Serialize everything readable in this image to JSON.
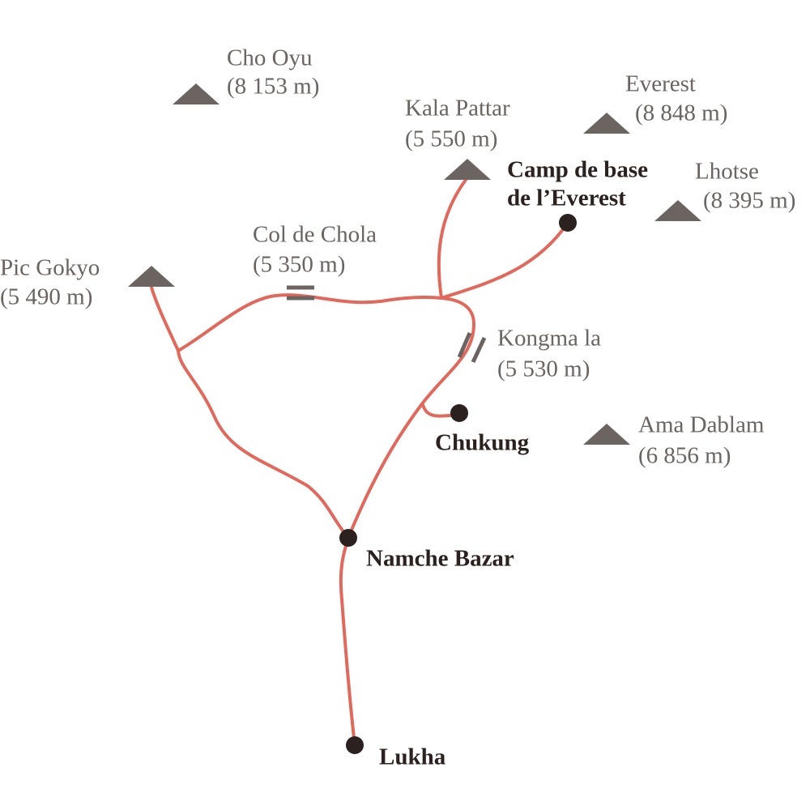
{
  "peaks": [
    {
      "name": "Cho Oyu",
      "altitude": "(8 153 m)"
    },
    {
      "name": "Kala Pattar",
      "altitude": "(5 550 m)"
    },
    {
      "name": "Everest",
      "altitude": "(8 848 m)"
    },
    {
      "name": "Lhotse",
      "altitude": "(8 395 m)"
    },
    {
      "name": "Pic Gokyo",
      "altitude": "(5 490 m)"
    },
    {
      "name": "Ama Dablam",
      "altitude": "(6 856 m)"
    }
  ],
  "passes": [
    {
      "name": "Col de Chola",
      "altitude": "(5 350 m)"
    },
    {
      "name": "Kongma la",
      "altitude": "(5 530 m)"
    }
  ],
  "places": [
    {
      "lines": [
        "Camp de base",
        "de l’Everest"
      ]
    },
    {
      "lines": [
        "Chukung"
      ]
    },
    {
      "lines": [
        "Namche Bazar"
      ]
    },
    {
      "lines": [
        "Lukha"
      ]
    }
  ]
}
